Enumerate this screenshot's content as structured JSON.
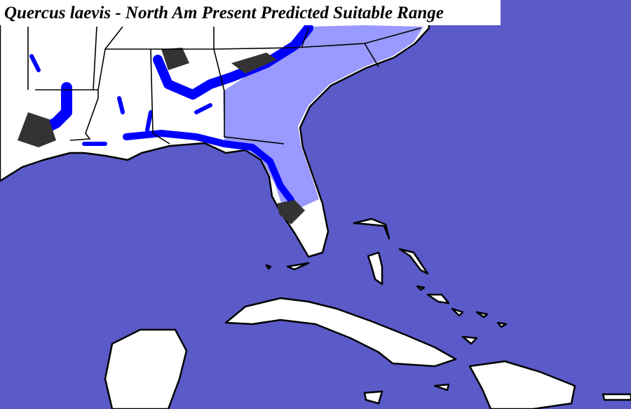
{
  "header": {
    "title": "Quercus laevis - North Am Present Predicted Suitable Range"
  }
}
